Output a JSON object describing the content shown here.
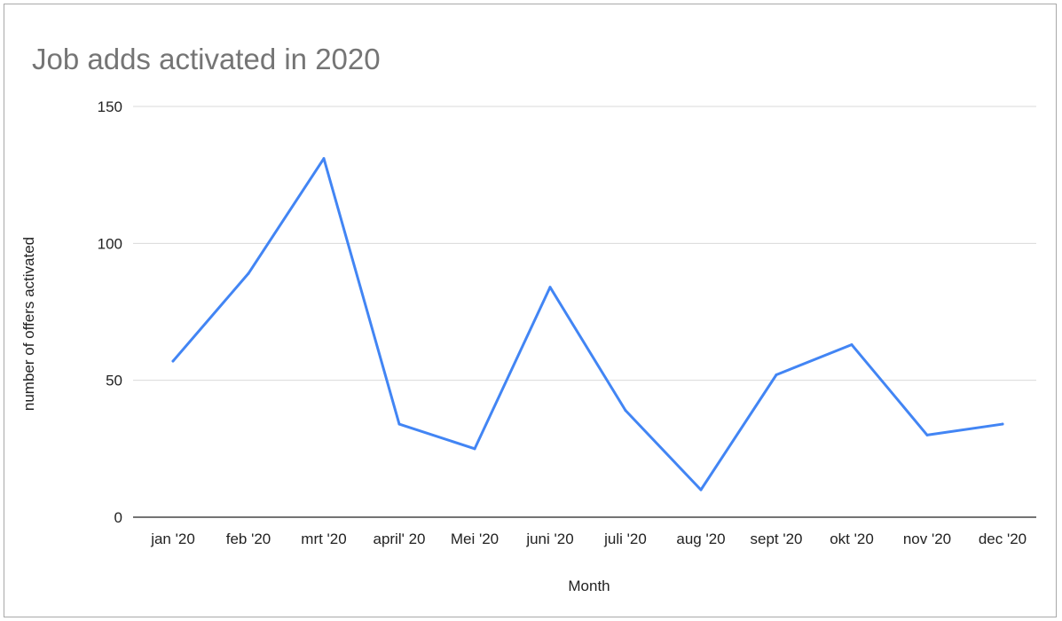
{
  "chart_data": {
    "type": "line",
    "title": "Job adds activated in 2020",
    "xlabel": "Month",
    "ylabel": "number of offers activated",
    "categories": [
      "jan '20",
      "feb '20",
      "mrt '20",
      "april' 20",
      "Mei '20",
      "juni '20",
      "juli '20",
      "aug '20",
      "sept '20",
      "okt '20",
      "nov '20",
      "dec '20"
    ],
    "series": [
      {
        "values": [
          57,
          89,
          131,
          34,
          25,
          84,
          39,
          10,
          52,
          63,
          30,
          34
        ]
      }
    ],
    "ylim": [
      0,
      150
    ],
    "yticks": [
      "0",
      "50",
      "100",
      "150"
    ],
    "grid": true,
    "legend": "none",
    "colors": {
      "line": "#4285f4",
      "grid": "#d9d9d9",
      "baseline": "#222222"
    }
  }
}
